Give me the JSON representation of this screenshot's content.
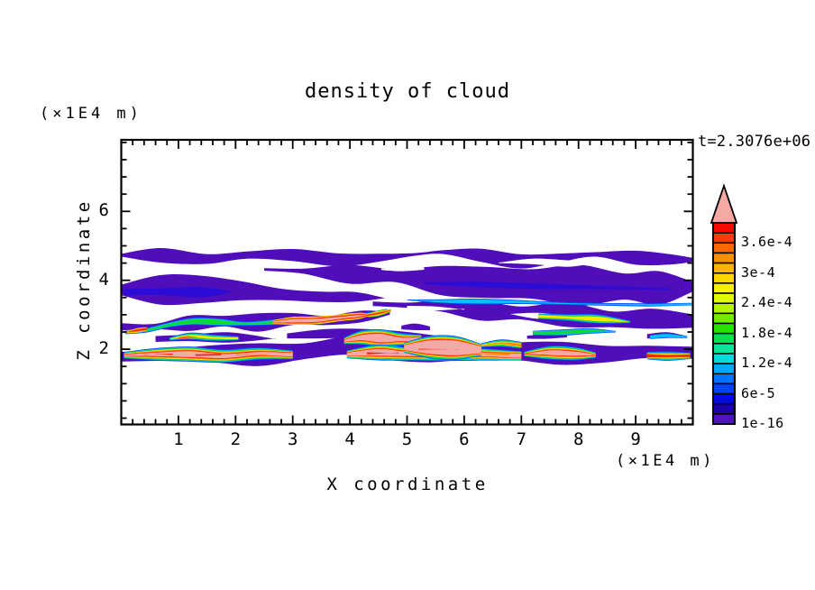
{
  "chart_data": {
    "type": "filled_contour",
    "title": "density of cloud",
    "time_label": "t=2.3076e+06",
    "x_axis": {
      "label": "X coordinate",
      "unit": "(×1E4 m)",
      "tick_labels": [
        "1",
        "2",
        "3",
        "4",
        "5",
        "6",
        "7",
        "8",
        "9"
      ],
      "range": [
        0,
        10
      ],
      "minor_step": 0.2
    },
    "y_axis": {
      "label": "Z coordinate",
      "unit": "(×1E4 m)",
      "tick_labels": [
        "2",
        "4",
        "6"
      ],
      "range": [
        0,
        8
      ],
      "minor_step": 0.5
    },
    "colorbar": {
      "labels_top_to_bottom": [
        "3.6e-4",
        "3e-4",
        "2.4e-4",
        "1.8e-4",
        "1.2e-4",
        "6e-5",
        "1e-16"
      ],
      "segment_colors_top_to_bottom": [
        "#f50a00",
        "#ff3c00",
        "#ff6900",
        "#ff9100",
        "#ffb400",
        "#ffd700",
        "#fcf000",
        "#e1fa00",
        "#b4f500",
        "#73eb00",
        "#28e100",
        "#00e150",
        "#00e69b",
        "#00dcdc",
        "#00aaff",
        "#0073ff",
        "#0041ff",
        "#000ae1",
        "#1e00aa",
        "#5014b9"
      ],
      "overflow_color": "#f4a9a5"
    },
    "palette": {
      "purple": "#4f0eb9",
      "darkblue": "#2b0bd6",
      "blue": "#0a46ff",
      "cyan": "#00c3f0",
      "green": "#0fd930",
      "yellow": "#ffe400",
      "orange": "#ff8c0a",
      "red": "#ff1e00",
      "pink": "#f4a9a5",
      "white": "#ffffff"
    },
    "features": [
      {
        "t": "r",
        "c": "purple",
        "p": [
          [
            0,
            4.68,
            0.13
          ],
          [
            0.7,
            4.73,
            0.17
          ],
          [
            1.5,
            4.66,
            0.12
          ],
          [
            2.2,
            4.71,
            0.16
          ],
          [
            3.0,
            4.69,
            0.19
          ],
          [
            3.8,
            4.63,
            0.14
          ],
          [
            4.5,
            4.67,
            0.12
          ],
          [
            5.15,
            4.74,
            0.09
          ],
          [
            5.65,
            4.8,
            0.05
          ],
          [
            6.3,
            4.7,
            0.15
          ],
          [
            7.0,
            4.62,
            0.2
          ],
          [
            7.7,
            4.65,
            0.16
          ],
          [
            8.3,
            4.73,
            0.09
          ],
          [
            9.0,
            4.67,
            0.14
          ],
          [
            9.6,
            4.61,
            0.13
          ],
          [
            10,
            4.63,
            0.12
          ]
        ]
      },
      {
        "t": "r",
        "c": "purple",
        "p": [
          [
            2.5,
            4.3,
            0.05
          ],
          [
            3.2,
            4.26,
            0.11
          ],
          [
            4.0,
            4.19,
            0.19
          ],
          [
            4.8,
            4.11,
            0.28
          ],
          [
            5.6,
            4.01,
            0.37
          ],
          [
            6.4,
            3.93,
            0.44
          ],
          [
            7.2,
            3.89,
            0.5
          ],
          [
            8.0,
            3.86,
            0.5
          ],
          [
            8.8,
            3.81,
            0.47
          ],
          [
            9.4,
            3.79,
            0.44
          ],
          [
            10,
            3.81,
            0.44
          ]
        ]
      },
      {
        "t": "r",
        "c": "purple",
        "p": [
          [
            0,
            3.73,
            0.32
          ],
          [
            0.7,
            3.71,
            0.35
          ],
          [
            1.4,
            3.69,
            0.32
          ],
          [
            2.1,
            3.67,
            0.29
          ],
          [
            2.8,
            3.63,
            0.23
          ],
          [
            3.5,
            3.58,
            0.16
          ],
          [
            4.1,
            3.53,
            0.1
          ],
          [
            4.6,
            3.49,
            0.05
          ]
        ]
      },
      {
        "t": "r",
        "c": "purple",
        "p": [
          [
            4.4,
            3.31,
            0.07
          ],
          [
            5.0,
            3.29,
            0.13
          ],
          [
            5.6,
            3.23,
            0.19
          ],
          [
            6.3,
            3.16,
            0.25
          ],
          [
            7.0,
            3.06,
            0.29
          ],
          [
            7.8,
            2.96,
            0.3
          ],
          [
            8.6,
            2.86,
            0.28
          ],
          [
            9.3,
            2.81,
            0.26
          ],
          [
            10,
            2.83,
            0.26
          ]
        ]
      },
      {
        "t": "r",
        "c": "purple",
        "p": [
          [
            0,
            2.61,
            0.13
          ],
          [
            0.6,
            2.67,
            0.15
          ],
          [
            1.2,
            2.79,
            0.17
          ],
          [
            1.8,
            2.81,
            0.19
          ],
          [
            2.4,
            2.79,
            0.21
          ],
          [
            3.0,
            2.81,
            0.19
          ],
          [
            3.6,
            2.87,
            0.17
          ],
          [
            4.2,
            2.95,
            0.14
          ],
          [
            4.7,
            3.06,
            0.09
          ]
        ]
      },
      {
        "t": "r",
        "c": "purple",
        "p": [
          [
            0,
            1.85,
            0.2
          ],
          [
            0.8,
            1.86,
            0.23
          ],
          [
            1.6,
            1.85,
            0.21
          ],
          [
            2.4,
            1.88,
            0.24
          ],
          [
            3.2,
            1.98,
            0.26
          ],
          [
            4.0,
            2.08,
            0.29
          ],
          [
            4.7,
            2.02,
            0.31
          ],
          [
            5.4,
            1.95,
            0.3
          ],
          [
            6.1,
            1.9,
            0.28
          ],
          [
            6.9,
            1.9,
            0.29
          ],
          [
            7.7,
            1.9,
            0.28
          ],
          [
            8.5,
            1.92,
            0.29
          ],
          [
            9.2,
            1.94,
            0.25
          ],
          [
            10,
            1.9,
            0.22
          ]
        ]
      },
      {
        "t": "r",
        "c": "purple",
        "p": [
          [
            0.6,
            2.31,
            0.09
          ],
          [
            1.2,
            2.34,
            0.12
          ],
          [
            1.9,
            2.31,
            0.11
          ],
          [
            2.7,
            2.29,
            0.07
          ]
        ]
      },
      {
        "t": "r",
        "c": "purple",
        "p": [
          [
            2.9,
            2.39,
            0.07
          ],
          [
            3.6,
            2.43,
            0.11
          ],
          [
            4.3,
            2.46,
            0.13
          ],
          [
            5.0,
            2.41,
            0.11
          ],
          [
            5.7,
            2.35,
            0.07
          ]
        ]
      },
      {
        "t": "r",
        "c": "purple",
        "p": [
          [
            4.9,
            2.63,
            0.05
          ],
          [
            5.15,
            2.64,
            0.07
          ],
          [
            5.4,
            2.62,
            0.05
          ]
        ]
      },
      {
        "t": "r",
        "c": "purple",
        "p": [
          [
            7.1,
            2.36,
            0.06
          ],
          [
            7.45,
            2.38,
            0.09
          ],
          [
            7.8,
            2.35,
            0.06
          ]
        ]
      },
      {
        "t": "r",
        "c": "purple",
        "p": [
          [
            9.2,
            2.4,
            0.06
          ],
          [
            9.55,
            2.42,
            0.08
          ],
          [
            9.9,
            2.39,
            0.06
          ]
        ]
      },
      {
        "t": "r",
        "c": "darkblue",
        "p": [
          [
            0.05,
            3.69,
            0.1
          ],
          [
            0.7,
            3.67,
            0.13
          ],
          [
            1.4,
            3.67,
            0.1
          ],
          [
            1.95,
            3.65,
            0.06
          ]
        ]
      },
      {
        "t": "r",
        "c": "darkblue",
        "p": [
          [
            5.3,
            3.93,
            0.06
          ],
          [
            6.2,
            3.91,
            0.1
          ],
          [
            7.1,
            3.87,
            0.12
          ],
          [
            8.0,
            3.83,
            0.1
          ],
          [
            8.9,
            3.79,
            0.08
          ],
          [
            9.6,
            3.77,
            0.05
          ]
        ]
      },
      {
        "t": "r",
        "c": "white",
        "p": [
          [
            6.6,
            4.53,
            0.04
          ],
          [
            7.2,
            4.51,
            0.09
          ],
          [
            7.8,
            4.49,
            0.07
          ],
          [
            8.2,
            4.51,
            0.03
          ]
        ]
      },
      {
        "t": "r",
        "c": "white",
        "p": [
          [
            4.55,
            4.33,
            0.03
          ],
          [
            4.9,
            4.31,
            0.07
          ],
          [
            5.3,
            4.33,
            0.03
          ]
        ]
      },
      {
        "t": "r",
        "c": "white",
        "p": [
          [
            5.0,
            3.21,
            0.04
          ],
          [
            5.5,
            3.19,
            0.07
          ],
          [
            6.0,
            3.16,
            0.04
          ]
        ]
      },
      {
        "t": "r",
        "c": "white",
        "p": [
          [
            6.8,
            3.01,
            0.03
          ],
          [
            7.3,
            2.99,
            0.06
          ],
          [
            7.8,
            2.97,
            0.03
          ]
        ]
      },
      {
        "t": "s",
        "top": "cyan",
        "h": 0.04,
        "p": [
          [
            5.0,
            3.43
          ],
          [
            5.6,
            3.41
          ],
          [
            6.2,
            3.39
          ],
          [
            6.9,
            3.37
          ],
          [
            7.6,
            3.34
          ],
          [
            8.4,
            3.31
          ],
          [
            9.2,
            3.29
          ],
          [
            10,
            3.31
          ]
        ]
      },
      {
        "t": "s",
        "top": "green",
        "h": 0.045,
        "p": [
          [
            0.07,
            2.49
          ],
          [
            0.45,
            2.57
          ],
          [
            0.85,
            2.69
          ],
          [
            1.25,
            2.81
          ],
          [
            1.7,
            2.79
          ],
          [
            2.15,
            2.75
          ],
          [
            2.6,
            2.77
          ],
          [
            3.05,
            2.81
          ],
          [
            3.5,
            2.86
          ],
          [
            3.95,
            2.93
          ],
          [
            4.35,
            3.01
          ],
          [
            4.65,
            3.09
          ]
        ]
      },
      {
        "t": "s",
        "top": "red",
        "rim": 2,
        "h": 0.025,
        "p": [
          [
            0.1,
            2.5
          ],
          [
            0.28,
            2.54
          ],
          [
            0.45,
            2.58
          ]
        ]
      },
      {
        "t": "s",
        "top": "pink",
        "rim": 3,
        "h": 0.03,
        "p": [
          [
            2.65,
            2.78
          ],
          [
            3.0,
            2.81
          ],
          [
            3.4,
            2.85
          ],
          [
            3.8,
            2.91
          ],
          [
            4.15,
            2.98
          ],
          [
            4.3,
            3.01
          ]
        ]
      },
      {
        "t": "s",
        "top": "red",
        "rim": 3,
        "h": 0.04,
        "p": [
          [
            4.3,
            3.0
          ],
          [
            4.5,
            3.05
          ],
          [
            4.72,
            3.11
          ]
        ]
      },
      {
        "t": "s",
        "top": "yellow",
        "h": 0.035,
        "p": [
          [
            0.85,
            2.31
          ],
          [
            1.2,
            2.36
          ],
          [
            1.6,
            2.35
          ],
          [
            2.05,
            2.31
          ]
        ]
      },
      {
        "t": "s",
        "top": "red",
        "rim": 1,
        "h": 0.015,
        "p": [
          [
            1.0,
            2.33
          ],
          [
            1.15,
            2.35
          ],
          [
            1.3,
            2.36
          ]
        ]
      },
      {
        "t": "s",
        "top": "yellow",
        "h": 0.045,
        "p": [
          [
            7.3,
            2.96
          ],
          [
            7.8,
            2.93
          ],
          [
            8.35,
            2.86
          ],
          [
            8.9,
            2.79
          ]
        ]
      },
      {
        "t": "s",
        "top": "green",
        "h": 0.04,
        "p": [
          [
            7.2,
            2.46
          ],
          [
            7.7,
            2.5
          ],
          [
            8.2,
            2.54
          ],
          [
            8.65,
            2.5
          ]
        ]
      },
      {
        "t": "s",
        "top": "orange",
        "h": 0.04,
        "p": [
          [
            6.3,
            2.13
          ],
          [
            6.65,
            2.16
          ],
          [
            7.0,
            2.11
          ]
        ]
      },
      {
        "t": "s",
        "top": "pink",
        "h": 0.09,
        "p": [
          [
            3.9,
            2.27
          ],
          [
            4.2,
            2.31
          ],
          [
            4.55,
            2.33
          ],
          [
            4.9,
            2.3
          ],
          [
            5.25,
            2.25
          ]
        ]
      },
      {
        "t": "s",
        "top": "pink",
        "h": 0.065,
        "p": [
          [
            0.05,
            1.83
          ],
          [
            0.6,
            1.85
          ],
          [
            1.2,
            1.84
          ],
          [
            1.8,
            1.83
          ],
          [
            2.4,
            1.85
          ],
          [
            3.0,
            1.84
          ]
        ]
      },
      {
        "t": "s",
        "top": "pink",
        "h": 0.08,
        "p": [
          [
            3.95,
            1.86
          ],
          [
            4.5,
            1.88
          ],
          [
            5.0,
            1.87
          ],
          [
            5.6,
            1.86
          ],
          [
            6.2,
            1.85
          ],
          [
            7.0,
            1.84
          ]
        ]
      },
      {
        "t": "s",
        "top": "pink",
        "h": 0.17,
        "p": [
          [
            4.95,
            2.03
          ],
          [
            5.4,
            2.06
          ],
          [
            5.85,
            2.03
          ],
          [
            6.3,
            1.99
          ]
        ]
      },
      {
        "t": "s",
        "top": "pink",
        "h": 0.05,
        "p": [
          [
            7.05,
            1.87
          ],
          [
            7.5,
            1.89
          ],
          [
            7.95,
            1.87
          ],
          [
            8.3,
            1.85
          ]
        ]
      },
      {
        "t": "s",
        "top": "red",
        "h": 0.04,
        "p": [
          [
            9.2,
            1.8
          ],
          [
            9.55,
            1.82
          ],
          [
            9.95,
            1.79
          ]
        ]
      },
      {
        "t": "s",
        "top": "cyan",
        "h": 0.04,
        "p": [
          [
            9.25,
            2.36
          ],
          [
            9.55,
            2.4
          ],
          [
            9.9,
            2.36
          ]
        ]
      },
      {
        "t": "r",
        "c": "red",
        "p": [
          [
            0.4,
            1.84,
            0.012
          ],
          [
            0.9,
            1.85,
            0.012
          ]
        ]
      },
      {
        "t": "r",
        "c": "red",
        "p": [
          [
            1.3,
            1.83,
            0.012
          ],
          [
            1.75,
            1.84,
            0.012
          ]
        ]
      },
      {
        "t": "r",
        "c": "orange",
        "p": [
          [
            2.0,
            1.85,
            0.011
          ],
          [
            2.6,
            1.84,
            0.011
          ]
        ]
      },
      {
        "t": "r",
        "c": "red",
        "p": [
          [
            4.3,
            1.87,
            0.012
          ],
          [
            4.85,
            1.88,
            0.012
          ]
        ]
      },
      {
        "t": "r",
        "c": "red",
        "p": [
          [
            5.2,
            2.02,
            0.013
          ],
          [
            5.9,
            2.0,
            0.013
          ]
        ]
      },
      {
        "t": "r",
        "c": "orange",
        "p": [
          [
            6.1,
            1.88,
            0.012
          ],
          [
            6.8,
            1.86,
            0.012
          ]
        ]
      }
    ]
  }
}
